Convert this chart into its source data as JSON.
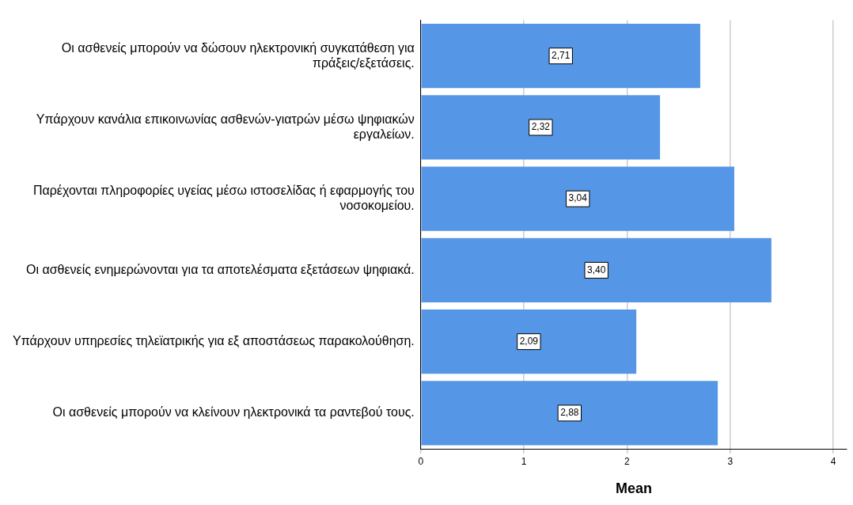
{
  "chart_data": {
    "type": "bar",
    "orientation": "horizontal",
    "xlabel": "Mean",
    "categories": [
      "Οι ασθενείς μπορούν να δώσουν ηλεκτρονική συγκατάθεση για πράξεις/εξετάσεις.",
      "Υπάρχουν κανάλια επικοινωνίας ασθενών-γιατρών μέσω ψηφιακών εργαλείων.",
      "Παρέχονται πληροφορίες υγείας μέσω ιστοσελίδας ή εφαρμογής του νοσοκομείου.",
      "Οι ασθενείς ενημερώνονται για τα αποτελέσματα εξετάσεων ψηφιακά.",
      "Υπάρχουν υπηρεσίες τηλεϊατρικής για εξ αποστάσεως παρακολούθηση.",
      "Οι ασθενείς μπορούν να κλείνουν ηλεκτρονικά τα ραντεβού τους."
    ],
    "values": [
      2.71,
      2.32,
      3.04,
      3.4,
      2.09,
      2.88
    ],
    "value_labels": [
      "2,71",
      "2,32",
      "3,04",
      "3,40",
      "2,09",
      "2,88"
    ],
    "color": "#5597e6",
    "xlim": [
      0,
      4.13
    ],
    "xticks": [
      0,
      1,
      2,
      3,
      4
    ],
    "grid": "x"
  }
}
